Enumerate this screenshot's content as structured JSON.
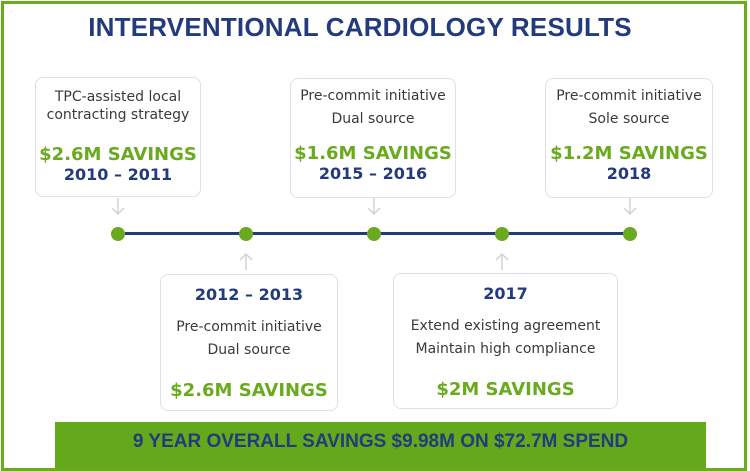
{
  "title": "INTERVENTIONAL CARDIOLOGY RESULTS",
  "milestones": [
    {
      "desc": [
        "TPC-assisted local",
        "contracting strategy"
      ],
      "savings": "$2.6M SAVINGS",
      "years": "2010 – 2011"
    },
    {
      "desc": [
        "Pre-commit initiative",
        "Dual source"
      ],
      "savings": "$2.6M SAVINGS",
      "years": "2012 – 2013"
    },
    {
      "desc": [
        "Pre-commit initiative",
        "Dual source"
      ],
      "savings": "$1.6M SAVINGS",
      "years": "2015 – 2016"
    },
    {
      "desc": [
        "Extend existing agreement",
        "Maintain high compliance"
      ],
      "savings": "$2M SAVINGS",
      "years": "2017"
    },
    {
      "desc": [
        "Pre-commit initiative",
        "Sole source"
      ],
      "savings": "$1.2M SAVINGS",
      "years": "2018"
    }
  ],
  "summary": "9 YEAR OVERALL SAVINGS $9.98M ON $72.7M SPEND",
  "colors": {
    "green": "#6aaa1e",
    "navy": "#233b7c"
  }
}
